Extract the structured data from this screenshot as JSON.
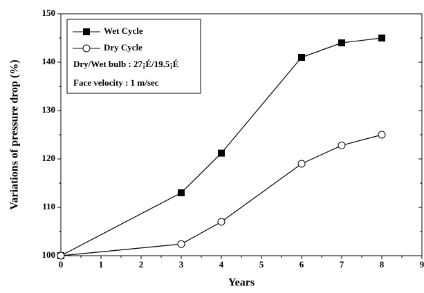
{
  "chart_data": {
    "type": "line",
    "xlabel": "Years",
    "ylabel": "Variations of pressure drop (%)",
    "annotations": [
      "Dry/Wet bulb : 27¡É/19.5¡É",
      "Face velocity : 1 m/sec"
    ],
    "series": [
      {
        "name": "Wet Cycle",
        "color": "#000000",
        "marker": "square",
        "x": [
          0,
          3,
          4,
          6,
          7,
          8
        ],
        "values": [
          100,
          113,
          121.2,
          141,
          144,
          145
        ]
      },
      {
        "name": "Dry Cycle",
        "color": "#000000",
        "marker": "circle",
        "x": [
          0,
          3,
          4,
          6,
          7,
          8
        ],
        "values": [
          100,
          102.4,
          107,
          119,
          122.8,
          125
        ]
      }
    ],
    "xlim": [
      0,
      9
    ],
    "xticks": [
      0,
      1,
      2,
      3,
      4,
      5,
      6,
      7,
      8,
      9
    ],
    "ylim": [
      100,
      150
    ],
    "yticks": [
      100,
      110,
      120,
      130,
      140,
      150
    ],
    "legend": "upper left"
  }
}
